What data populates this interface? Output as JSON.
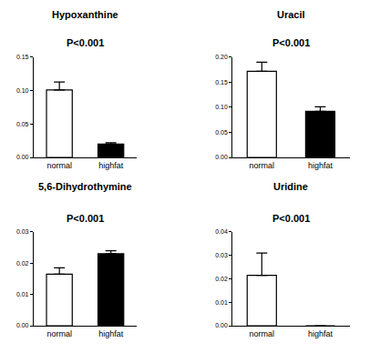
{
  "chart_data": [
    {
      "type": "bar",
      "title": "Hypoxanthine",
      "subtitle": "P<0.001",
      "categories": [
        "normal",
        "highfat"
      ],
      "values": [
        0.101,
        0.02
      ],
      "errors": [
        0.012,
        0.002
      ],
      "colors": [
        "#ffffff",
        "#000000"
      ],
      "ylim": [
        0,
        0.15
      ],
      "yticks": [
        {
          "value": 0,
          "label": "0.00"
        },
        {
          "value": 0.05,
          "label": "0.05"
        },
        {
          "value": 0.1,
          "label": "0.10"
        },
        {
          "value": 0.15,
          "label": "0.15"
        }
      ]
    },
    {
      "type": "bar",
      "title": "Uracil",
      "subtitle": "P<0.001",
      "categories": [
        "normal",
        "highfat"
      ],
      "values": [
        0.172,
        0.092
      ],
      "errors": [
        0.018,
        0.009
      ],
      "colors": [
        "#ffffff",
        "#000000"
      ],
      "ylim": [
        0,
        0.2
      ],
      "yticks": [
        {
          "value": 0,
          "label": "0.00"
        },
        {
          "value": 0.05,
          "label": "0.05"
        },
        {
          "value": 0.1,
          "label": "0.10"
        },
        {
          "value": 0.15,
          "label": "0.15"
        },
        {
          "value": 0.2,
          "label": "0.20"
        }
      ]
    },
    {
      "type": "bar",
      "title": "5,6-Dihydrothymine",
      "subtitle": "P<0.001",
      "categories": [
        "normal",
        "highfat"
      ],
      "values": [
        0.0165,
        0.023
      ],
      "errors": [
        0.002,
        0.001
      ],
      "colors": [
        "#ffffff",
        "#000000"
      ],
      "ylim": [
        0,
        0.03
      ],
      "yticks": [
        {
          "value": 0,
          "label": "0.00"
        },
        {
          "value": 0.01,
          "label": "0.01"
        },
        {
          "value": 0.02,
          "label": "0.02"
        },
        {
          "value": 0.03,
          "label": "0.03"
        }
      ]
    },
    {
      "type": "bar",
      "title": "Uridine",
      "subtitle": "P<0.001",
      "categories": [
        "normal",
        "highfat"
      ],
      "values": [
        0.0215,
        0
      ],
      "errors": [
        0.0095,
        0
      ],
      "colors": [
        "#ffffff",
        "#000000"
      ],
      "ylim": [
        0,
        0.04
      ],
      "yticks": [
        {
          "value": 0,
          "label": "0.00"
        },
        {
          "value": 0.01,
          "label": "0.01"
        },
        {
          "value": 0.02,
          "label": "0.02"
        },
        {
          "value": 0.03,
          "label": "0.03"
        },
        {
          "value": 0.04,
          "label": "0.04"
        }
      ]
    }
  ]
}
